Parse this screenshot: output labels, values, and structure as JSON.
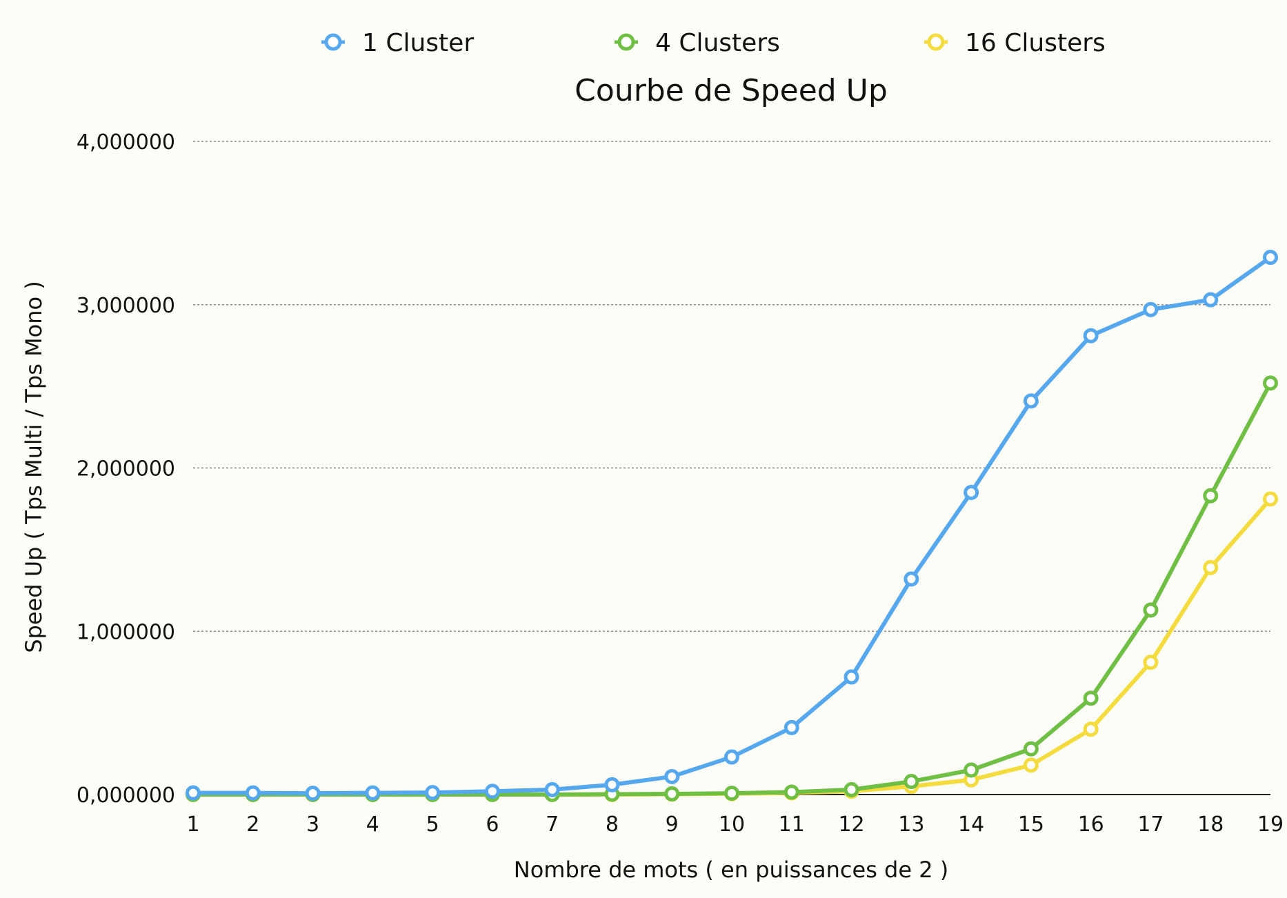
{
  "chart_data": {
    "type": "line",
    "title": "Courbe de Speed Up",
    "xlabel": "Nombre de mots ( en puissances de 2 )",
    "ylabel": "Speed Up ( Tps Multi / Tps Mono )",
    "x": [
      1,
      2,
      3,
      4,
      5,
      6,
      7,
      8,
      9,
      10,
      11,
      12,
      13,
      14,
      15,
      16,
      17,
      18,
      19
    ],
    "x_tick_labels": [
      "1",
      "2",
      "3",
      "4",
      "5",
      "6",
      "7",
      "8",
      "9",
      "10",
      "11",
      "12",
      "13",
      "14",
      "15",
      "16",
      "17",
      "18",
      "19"
    ],
    "ylim": [
      0,
      4
    ],
    "y_ticks": [
      0,
      1,
      2,
      3,
      4
    ],
    "y_tick_labels": [
      "0,000000",
      "1,000000",
      "2,000000",
      "3,000000",
      "4,000000"
    ],
    "grid": "horizontal dotted",
    "legend": "top",
    "series": [
      {
        "name": "1 Cluster",
        "color": "#55a7ee",
        "values": [
          0.01,
          0.01,
          0.008,
          0.01,
          0.012,
          0.02,
          0.03,
          0.06,
          0.11,
          0.23,
          0.41,
          0.72,
          1.32,
          1.85,
          2.41,
          2.81,
          2.97,
          3.03,
          3.29
        ]
      },
      {
        "name": "4 Clusters",
        "color": "#6fbf45",
        "values": [
          0.0,
          0.0,
          0.0,
          0.0,
          0.0,
          0.0,
          0.0,
          0.002,
          0.004,
          0.008,
          0.015,
          0.03,
          0.08,
          0.15,
          0.28,
          0.59,
          1.13,
          1.83,
          2.52
        ]
      },
      {
        "name": "16 Clusters",
        "color": "#f4dc3f",
        "values": [
          0.0,
          0.0,
          0.0,
          0.0,
          0.0,
          0.0,
          0.0,
          0.0,
          0.002,
          0.005,
          0.01,
          0.02,
          0.05,
          0.09,
          0.18,
          0.4,
          0.81,
          1.39,
          1.81
        ]
      }
    ]
  }
}
